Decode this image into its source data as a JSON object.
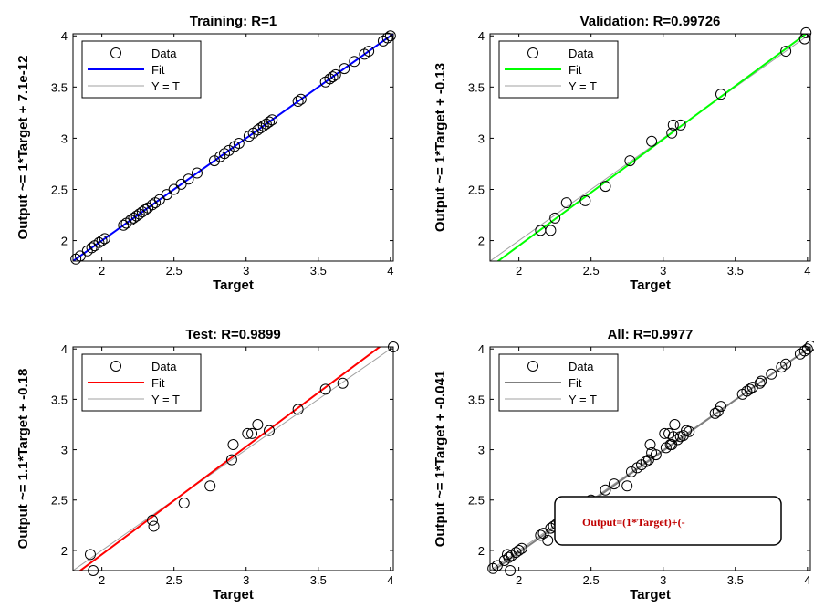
{
  "chart_data": [
    {
      "type": "scatter",
      "title": "Training: R=1",
      "xlabel": "Target",
      "ylabel": "Output ~= 1*Target + 7.1e-12",
      "xlim": [
        1.8,
        4.02
      ],
      "ylim": [
        1.8,
        4.02
      ],
      "xticks": [
        "2",
        "2.5",
        "3",
        "3.5",
        "4"
      ],
      "yticks": [
        "2",
        "2.5",
        "3",
        "3.5",
        "4"
      ],
      "grid": false,
      "legend": [
        "Data",
        "Fit",
        "Y = T"
      ],
      "legend_position": "top-left",
      "fit": {
        "slope": 1,
        "intercept": 0,
        "color": "#0000ff"
      },
      "identity_color": "#a0a0a0",
      "points": {
        "x": [
          1.82,
          1.85,
          1.9,
          1.93,
          1.95,
          1.98,
          2.0,
          2.02,
          2.15,
          2.17,
          2.2,
          2.22,
          2.24,
          2.26,
          2.28,
          2.3,
          2.32,
          2.35,
          2.37,
          2.4,
          2.45,
          2.5,
          2.55,
          2.6,
          2.66,
          2.78,
          2.82,
          2.85,
          2.88,
          2.92,
          2.95,
          3.02,
          3.05,
          3.08,
          3.1,
          3.12,
          3.14,
          3.16,
          3.18,
          3.36,
          3.38,
          3.55,
          3.58,
          3.6,
          3.62,
          3.68,
          3.75,
          3.82,
          3.85,
          3.95,
          3.98,
          4.0
        ],
        "y": [
          1.82,
          1.85,
          1.9,
          1.93,
          1.95,
          1.98,
          2.0,
          2.02,
          2.15,
          2.17,
          2.2,
          2.22,
          2.24,
          2.26,
          2.28,
          2.3,
          2.32,
          2.35,
          2.37,
          2.4,
          2.45,
          2.5,
          2.55,
          2.6,
          2.66,
          2.78,
          2.82,
          2.85,
          2.88,
          2.92,
          2.95,
          3.02,
          3.05,
          3.08,
          3.1,
          3.12,
          3.14,
          3.16,
          3.18,
          3.36,
          3.38,
          3.55,
          3.58,
          3.6,
          3.62,
          3.68,
          3.75,
          3.82,
          3.85,
          3.95,
          3.98,
          4.0
        ]
      }
    },
    {
      "type": "scatter",
      "title": "Validation: R=0.99726",
      "xlabel": "Target",
      "ylabel": "Output ~= 1*Target + -0.13",
      "xlim": [
        1.8,
        4.02
      ],
      "ylim": [
        1.8,
        4.02
      ],
      "xticks": [
        "2",
        "2.5",
        "3",
        "3.5",
        "4"
      ],
      "yticks": [
        "2",
        "2.5",
        "3",
        "3.5",
        "4"
      ],
      "grid": false,
      "legend": [
        "Data",
        "Fit",
        "Y = T"
      ],
      "legend_position": "top-left",
      "fit": {
        "slope": 1.04,
        "intercept": -0.13,
        "color": "#00ff00"
      },
      "identity_color": "#a0a0a0",
      "points": {
        "x": [
          2.15,
          2.22,
          2.25,
          2.33,
          2.46,
          2.6,
          2.77,
          2.92,
          3.06,
          3.07,
          3.12,
          3.4,
          3.85,
          3.98,
          3.99
        ],
        "y": [
          2.1,
          2.1,
          2.22,
          2.37,
          2.39,
          2.53,
          2.78,
          2.97,
          3.05,
          3.13,
          3.13,
          3.43,
          3.85,
          3.97,
          4.03
        ]
      }
    },
    {
      "type": "scatter",
      "title": "Test: R=0.9899",
      "xlabel": "Target",
      "ylabel": "Output ~= 1.1*Target + -0.18",
      "xlim": [
        1.8,
        4.02
      ],
      "ylim": [
        1.8,
        4.02
      ],
      "xticks": [
        "2",
        "2.5",
        "3",
        "3.5",
        "4"
      ],
      "yticks": [
        "2",
        "2.5",
        "3",
        "3.5",
        "4"
      ],
      "grid": false,
      "legend": [
        "Data",
        "Fit",
        "Y = T"
      ],
      "legend_position": "top-left",
      "fit": {
        "slope": 1.07,
        "intercept": -0.18,
        "color": "#ff0000"
      },
      "identity_color": "#a0a0a0",
      "points": {
        "x": [
          1.92,
          1.94,
          2.35,
          2.36,
          2.57,
          2.75,
          2.9,
          2.91,
          3.01,
          3.04,
          3.08,
          3.16,
          3.36,
          3.55,
          3.67,
          4.02
        ],
        "y": [
          1.96,
          1.8,
          2.3,
          2.24,
          2.47,
          2.64,
          2.9,
          3.05,
          3.16,
          3.16,
          3.25,
          3.19,
          3.4,
          3.6,
          3.66,
          4.02
        ]
      }
    },
    {
      "type": "scatter",
      "title": "All: R=0.9977",
      "xlabel": "Target",
      "ylabel": "Output ~= 1*Target + -0.041",
      "xlim": [
        1.8,
        4.02
      ],
      "ylim": [
        1.8,
        4.02
      ],
      "xticks": [
        "2",
        "2.5",
        "3",
        "3.5",
        "4"
      ],
      "yticks": [
        "2",
        "2.5",
        "3",
        "3.5",
        "4"
      ],
      "grid": false,
      "legend": [
        "Data",
        "Fit",
        "Y = T"
      ],
      "legend_position": "top-left",
      "fit": {
        "slope": 1.01,
        "intercept": -0.041,
        "color": "#7f7f7f"
      },
      "identity_color": "#a0a0a0",
      "annotation": "Output=(1*Target)+(-",
      "points": {
        "x": [
          1.82,
          1.85,
          1.9,
          1.92,
          1.93,
          1.94,
          1.95,
          1.98,
          2.0,
          2.02,
          2.15,
          2.17,
          2.2,
          2.22,
          2.24,
          2.26,
          2.28,
          2.3,
          2.32,
          2.35,
          2.36,
          2.4,
          2.45,
          2.5,
          2.57,
          2.6,
          2.66,
          2.75,
          2.78,
          2.82,
          2.85,
          2.88,
          2.9,
          2.91,
          2.92,
          2.95,
          3.01,
          3.02,
          3.04,
          3.05,
          3.06,
          3.07,
          3.08,
          3.1,
          3.12,
          3.14,
          3.16,
          3.18,
          3.36,
          3.38,
          3.4,
          3.55,
          3.58,
          3.6,
          3.62,
          3.67,
          3.68,
          3.75,
          3.82,
          3.85,
          3.95,
          3.98,
          4.0,
          4.02
        ],
        "y": [
          1.82,
          1.85,
          1.9,
          1.96,
          1.93,
          1.8,
          1.95,
          1.98,
          2.0,
          2.02,
          2.15,
          2.17,
          2.1,
          2.22,
          2.24,
          2.26,
          2.28,
          2.3,
          2.32,
          2.37,
          2.24,
          2.39,
          2.45,
          2.5,
          2.47,
          2.6,
          2.66,
          2.64,
          2.78,
          2.82,
          2.85,
          2.88,
          2.9,
          3.05,
          2.97,
          2.95,
          3.16,
          3.02,
          3.16,
          3.05,
          3.05,
          3.13,
          3.25,
          3.1,
          3.13,
          3.14,
          3.19,
          3.18,
          3.36,
          3.38,
          3.43,
          3.55,
          3.58,
          3.6,
          3.62,
          3.66,
          3.68,
          3.75,
          3.82,
          3.85,
          3.95,
          3.98,
          4.0,
          4.03
        ]
      }
    }
  ]
}
